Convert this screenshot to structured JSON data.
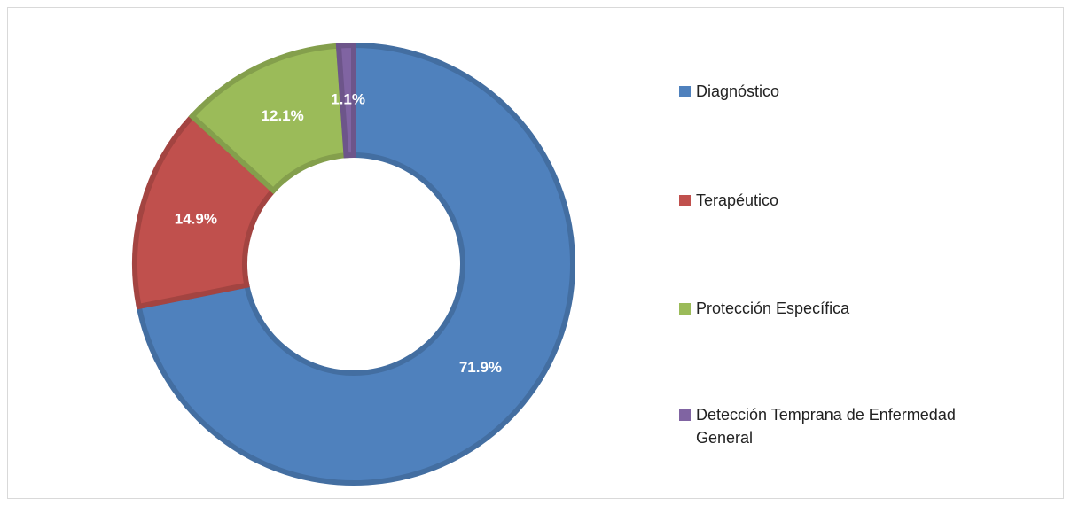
{
  "chart_data": {
    "type": "donut",
    "categories": [
      "Diagnóstico",
      "Terapéutico",
      "Protección Específica",
      "Detección Temprana de Enfermedad General"
    ],
    "values": [
      71.9,
      14.9,
      12.1,
      1.1
    ],
    "value_labels": [
      "71.9%",
      "14.9%",
      "12.1%",
      "1.1%"
    ],
    "colors": [
      "#4f81bd",
      "#c0504d",
      "#9bbb59",
      "#8064a2"
    ],
    "legend": "right"
  }
}
